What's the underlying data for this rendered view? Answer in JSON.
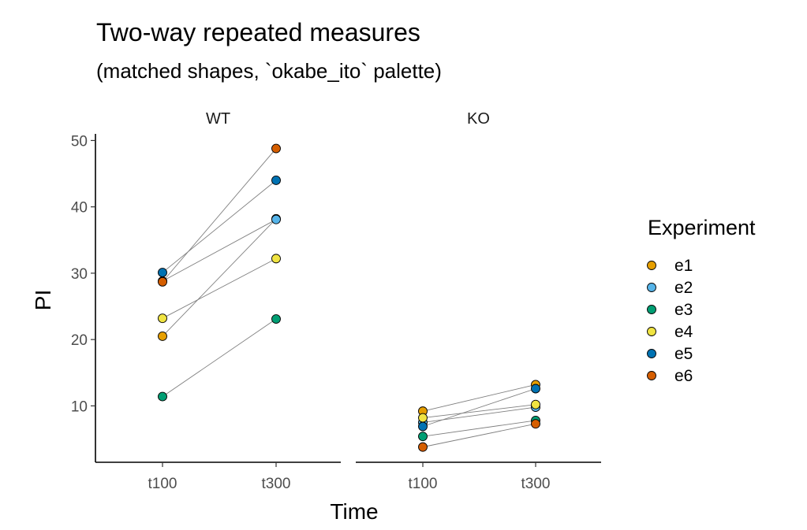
{
  "chart_data": {
    "type": "line",
    "title": "Two-way repeated measures",
    "subtitle": "(matched shapes, `okabe_ito` palette)",
    "xlabel": "Time",
    "ylabel": "PI",
    "ylim": [
      1.5,
      51
    ],
    "yticks": [
      10,
      20,
      30,
      40,
      50
    ],
    "categories": [
      "t100",
      "t300"
    ],
    "grid": false,
    "legend_title": "Experiment",
    "legend_position": "right",
    "panels": [
      {
        "name": "WT",
        "series": [
          {
            "name": "e1",
            "color": "#E69F00",
            "values": [
              20.5,
              38.2
            ]
          },
          {
            "name": "e2",
            "color": "#56B4E9",
            "values": [
              28.8,
              38.1
            ]
          },
          {
            "name": "e3",
            "color": "#009E73",
            "values": [
              11.4,
              23.1
            ]
          },
          {
            "name": "e4",
            "color": "#F0E442",
            "values": [
              23.2,
              32.2
            ]
          },
          {
            "name": "e5",
            "color": "#0072B2",
            "values": [
              30.1,
              44.0
            ]
          },
          {
            "name": "e6",
            "color": "#D55E00",
            "values": [
              28.7,
              48.8
            ]
          }
        ]
      },
      {
        "name": "KO",
        "series": [
          {
            "name": "e1",
            "color": "#E69F00",
            "values": [
              9.2,
              13.2
            ]
          },
          {
            "name": "e2",
            "color": "#56B4E9",
            "values": [
              7.5,
              9.8
            ]
          },
          {
            "name": "e3",
            "color": "#009E73",
            "values": [
              5.4,
              7.8
            ]
          },
          {
            "name": "e4",
            "color": "#F0E442",
            "values": [
              8.2,
              10.2
            ]
          },
          {
            "name": "e5",
            "color": "#0072B2",
            "values": [
              6.9,
              12.6
            ]
          },
          {
            "name": "e6",
            "color": "#D55E00",
            "values": [
              3.8,
              7.3
            ]
          }
        ]
      }
    ]
  }
}
